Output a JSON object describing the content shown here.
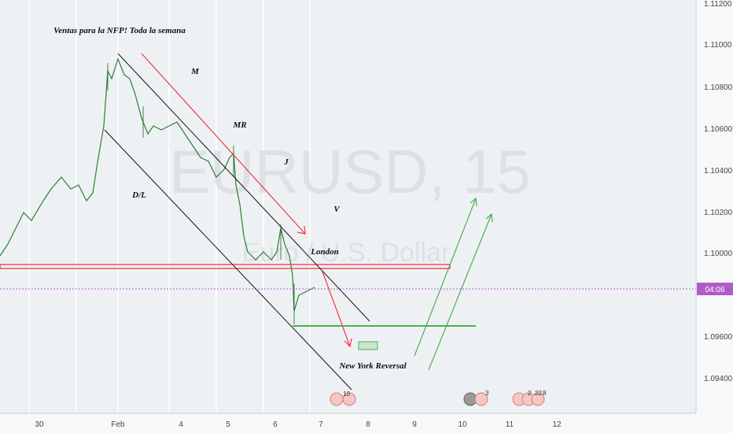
{
  "watermark": {
    "symbol": "EURUSD, 15",
    "description": "Euro / U.S. Dollar"
  },
  "annotations": [
    "Ventas para la NFP! Toda la semana",
    "M",
    "MR",
    "J",
    "V",
    "D/L",
    "London",
    "New York Reversal"
  ],
  "price_axis": {
    "labels": [
      "1.11200",
      "1.11000",
      "1.10800",
      "1.10600",
      "1.10400",
      "1.10200",
      "1.10000",
      "1.09600",
      "1.09400"
    ],
    "current": "04:06"
  },
  "time_axis": {
    "labels": [
      "30",
      "Feb",
      "4",
      "5",
      "6",
      "7",
      "8",
      "9",
      "10",
      "11",
      "12"
    ]
  },
  "events": [
    "10",
    "3",
    "2",
    "22",
    "8"
  ]
}
